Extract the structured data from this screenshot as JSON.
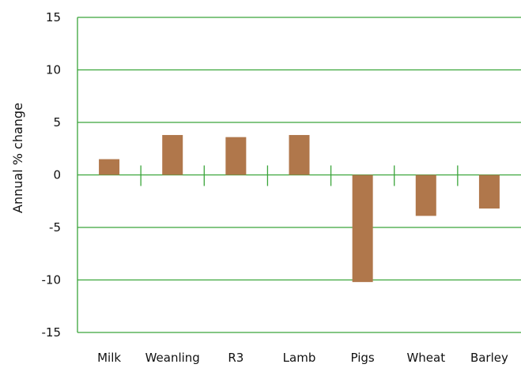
{
  "chart_data": {
    "type": "bar",
    "title": "",
    "xlabel": "",
    "ylabel": "Annual % change",
    "categories": [
      "Milk",
      "Weanling",
      "R3",
      "Lamb",
      "Pigs",
      "Wheat",
      "Barley"
    ],
    "values": [
      1.5,
      3.8,
      3.6,
      3.8,
      -10.2,
      -3.9,
      -3.2
    ],
    "ylim": [
      -15,
      15
    ],
    "yticks": [
      15,
      10,
      5,
      0,
      -5,
      -10,
      -15
    ],
    "grid": true,
    "legend": "none",
    "colors": {
      "bar": "#b0774b",
      "grid": "#3aa53a",
      "text": "#111111"
    }
  }
}
